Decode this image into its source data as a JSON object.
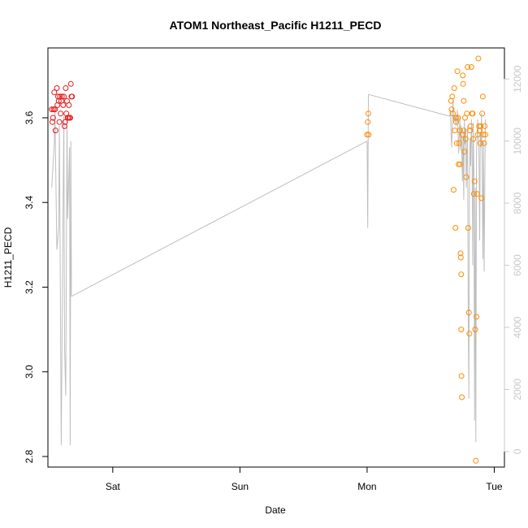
{
  "chart_data": {
    "type": "scatter",
    "title": "ATOM1 Northeast_Pacific H1211_PECD",
    "xlabel": "Date",
    "ylabel": "H1211_PECD",
    "x_ticks": [
      {
        "label": "Sat",
        "value": 1.0
      },
      {
        "label": "Sun",
        "value": 2.0
      },
      {
        "label": "Mon",
        "value": 3.0
      },
      {
        "label": "Tue",
        "value": 4.0
      }
    ],
    "xlim": [
      0.49,
      4.08
    ],
    "ylim": [
      2.775,
      3.765
    ],
    "y_ticks": [
      2.8,
      3.0,
      3.2,
      3.4,
      3.6
    ],
    "y2_ticks": [
      0,
      2000,
      4000,
      6000,
      8000,
      10000,
      12000
    ],
    "y2lim": [
      -500,
      13000
    ],
    "colors": {
      "series_1": "#e41a1c",
      "series_2": "#ff8c00",
      "altitude_line": "#bebebe",
      "right_axis": "#c8c8c8"
    },
    "series": [
      {
        "color": "#e41a1c",
        "points": [
          [
            0.52,
            3.62
          ],
          [
            0.525,
            3.59
          ],
          [
            0.53,
            3.6
          ],
          [
            0.535,
            3.62
          ],
          [
            0.54,
            3.66
          ],
          [
            0.545,
            3.62
          ],
          [
            0.55,
            3.57
          ],
          [
            0.56,
            3.67
          ],
          [
            0.565,
            3.63
          ],
          [
            0.57,
            3.65
          ],
          [
            0.575,
            3.64
          ],
          [
            0.58,
            3.59
          ],
          [
            0.585,
            3.65
          ],
          [
            0.59,
            3.61
          ],
          [
            0.595,
            3.64
          ],
          [
            0.6,
            3.65
          ],
          [
            0.61,
            3.63
          ],
          [
            0.615,
            3.65
          ],
          [
            0.62,
            3.58
          ],
          [
            0.625,
            3.59
          ],
          [
            0.63,
            3.67
          ],
          [
            0.635,
            3.61
          ],
          [
            0.64,
            3.64
          ],
          [
            0.645,
            3.6
          ],
          [
            0.65,
            3.6
          ],
          [
            0.655,
            3.63
          ],
          [
            0.66,
            3.6
          ],
          [
            0.665,
            3.6
          ],
          [
            0.67,
            3.68
          ],
          [
            0.675,
            3.65
          ],
          [
            0.68,
            3.65
          ]
        ]
      },
      {
        "color": "#ff8c00",
        "points": [
          [
            3.0,
            3.56
          ],
          [
            3.005,
            3.59
          ],
          [
            3.01,
            3.61
          ],
          [
            3.012,
            3.56
          ],
          [
            3.66,
            3.64
          ],
          [
            3.665,
            3.62
          ],
          [
            3.67,
            3.65
          ],
          [
            3.675,
            3.61
          ],
          [
            3.68,
            3.43
          ],
          [
            3.685,
            3.67
          ],
          [
            3.69,
            3.57
          ],
          [
            3.695,
            3.34
          ],
          [
            3.7,
            3.59
          ],
          [
            3.705,
            3.54
          ],
          [
            3.71,
            3.71
          ],
          [
            3.715,
            3.6
          ],
          [
            3.72,
            3.49
          ],
          [
            3.725,
            3.54
          ],
          [
            3.73,
            3.57
          ],
          [
            3.735,
            3.28
          ],
          [
            3.737,
            3.27
          ],
          [
            3.74,
            3.1
          ],
          [
            3.742,
            2.99
          ],
          [
            3.745,
            2.94
          ],
          [
            3.75,
            3.56
          ],
          [
            3.752,
            3.7
          ],
          [
            3.755,
            3.68
          ],
          [
            3.76,
            3.57
          ],
          [
            3.765,
            3.52
          ],
          [
            3.77,
            3.6
          ],
          [
            3.775,
            3.55
          ],
          [
            3.78,
            3.46
          ],
          [
            3.785,
            3.61
          ],
          [
            3.79,
            3.72
          ],
          [
            3.795,
            3.34
          ],
          [
            3.8,
            3.14
          ],
          [
            3.805,
            3.09
          ],
          [
            3.81,
            3.57
          ],
          [
            3.815,
            3.58
          ],
          [
            3.82,
            3.72
          ],
          [
            3.825,
            3.61
          ],
          [
            3.83,
            3.61
          ],
          [
            3.835,
            3.55
          ],
          [
            3.84,
            3.42
          ],
          [
            3.845,
            3.45
          ],
          [
            3.85,
            3.1
          ],
          [
            3.855,
            2.79
          ],
          [
            3.86,
            3.13
          ],
          [
            3.865,
            3.42
          ],
          [
            3.87,
            3.56
          ],
          [
            3.875,
            3.74
          ],
          [
            3.88,
            3.58
          ],
          [
            3.885,
            3.57
          ],
          [
            3.89,
            3.54
          ],
          [
            3.895,
            3.58
          ],
          [
            3.9,
            3.41
          ],
          [
            3.905,
            3.61
          ],
          [
            3.91,
            3.65
          ],
          [
            3.915,
            3.56
          ],
          [
            3.92,
            3.54
          ],
          [
            3.925,
            3.58
          ],
          [
            3.93,
            3.56
          ],
          [
            3.74,
            3.23
          ],
          [
            3.73,
            3.49
          ],
          [
            3.7,
            3.6
          ],
          [
            3.76,
            3.64
          ]
        ]
      }
    ],
    "altitude_line": [
      [
        0.52,
        8500
      ],
      [
        0.54,
        9900
      ],
      [
        0.545,
        11000
      ],
      [
        0.56,
        6500
      ],
      [
        0.575,
        7200
      ],
      [
        0.58,
        10500
      ],
      [
        0.595,
        200
      ],
      [
        0.6,
        3000
      ],
      [
        0.615,
        10800
      ],
      [
        0.62,
        3500
      ],
      [
        0.63,
        1800
      ],
      [
        0.64,
        10700
      ],
      [
        0.645,
        7500
      ],
      [
        0.655,
        8900
      ],
      [
        0.66,
        9800
      ],
      [
        0.665,
        200
      ],
      [
        0.67,
        10000
      ],
      [
        0.675,
        5000
      ],
      [
        3.0,
        10000
      ],
      [
        3.005,
        7200
      ],
      [
        3.01,
        11500
      ],
      [
        3.65,
        10800
      ],
      [
        3.655,
        11000
      ],
      [
        3.66,
        10200
      ],
      [
        3.665,
        9800
      ],
      [
        3.67,
        10500
      ],
      [
        3.675,
        11300
      ],
      [
        3.68,
        10600
      ],
      [
        3.69,
        10800
      ],
      [
        3.7,
        10500
      ],
      [
        3.71,
        11000
      ],
      [
        3.72,
        9600
      ],
      [
        3.73,
        10800
      ],
      [
        3.735,
        9700
      ],
      [
        3.74,
        10500
      ],
      [
        3.75,
        8700
      ],
      [
        3.755,
        10300
      ],
      [
        3.76,
        8100
      ],
      [
        3.765,
        10700
      ],
      [
        3.77,
        9900
      ],
      [
        3.775,
        10400
      ],
      [
        3.78,
        8500
      ],
      [
        3.79,
        10500
      ],
      [
        3.795,
        4500
      ],
      [
        3.8,
        1700
      ],
      [
        3.805,
        8700
      ],
      [
        3.81,
        10100
      ],
      [
        3.815,
        9200
      ],
      [
        3.82,
        10700
      ],
      [
        3.825,
        9800
      ],
      [
        3.83,
        6000
      ],
      [
        3.835,
        10600
      ],
      [
        3.84,
        9000
      ],
      [
        3.845,
        1000
      ],
      [
        3.85,
        8500
      ],
      [
        3.855,
        300
      ],
      [
        3.86,
        9700
      ],
      [
        3.87,
        10700
      ],
      [
        3.88,
        9500
      ],
      [
        3.885,
        6800
      ],
      [
        3.89,
        10300
      ],
      [
        3.895,
        9800
      ],
      [
        3.9,
        10900
      ],
      [
        3.905,
        9300
      ],
      [
        3.91,
        6200
      ],
      [
        3.915,
        10000
      ],
      [
        3.92,
        5800
      ],
      [
        3.93,
        10700
      ]
    ],
    "altitude_line_bridge": [
      [
        0.675,
        5000
      ],
      [
        3.0,
        10000
      ]
    ],
    "altitude_line_bridge2": [
      [
        3.012,
        11500
      ],
      [
        3.65,
        10800
      ]
    ],
    "legend": "none",
    "grid": false
  }
}
